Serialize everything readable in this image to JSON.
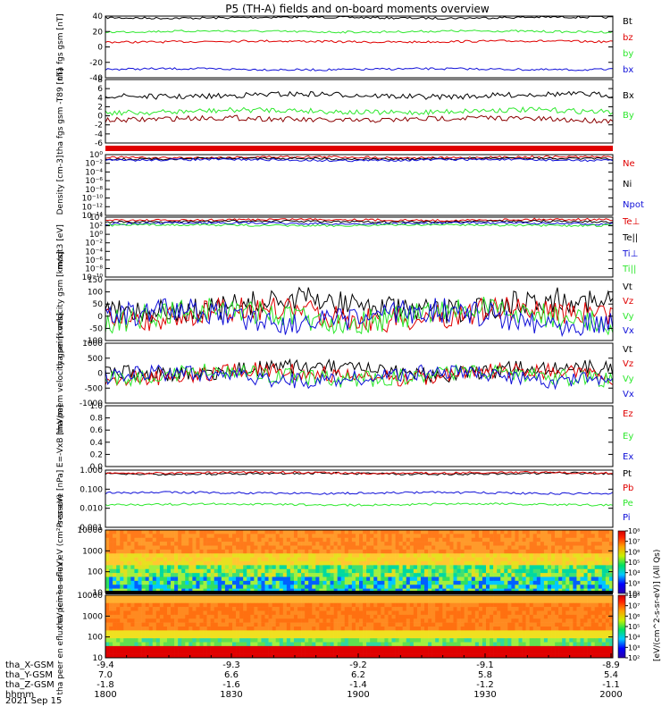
{
  "title": "P5 (TH-A) fields and on-board moments overview",
  "date_label": "2021 Sep 15",
  "colors": {
    "black": "#000000",
    "red": "#e00000",
    "green": "#2ee82e",
    "blue": "#1010d8",
    "dkred": "#8b0000"
  },
  "ephemeris": {
    "row_labels": [
      "tha_X-GSM",
      "tha_Y-GSM",
      "tha_Z-GSM",
      "hhmm"
    ],
    "columns": [
      [
        "-9.4",
        "7.0",
        "-1.8",
        "1800"
      ],
      [
        "-9.3",
        "6.6",
        "-1.6",
        "1830"
      ],
      [
        "-9.2",
        "6.2",
        "-1.4",
        "1900"
      ],
      [
        "-9.1",
        "5.8",
        "-1.2",
        "1930"
      ],
      [
        "-8.9",
        "5.4",
        "-1.1",
        "2000"
      ]
    ]
  },
  "colorbar": {
    "ticks": [
      "10²",
      "10³",
      "10⁴",
      "10⁵",
      "10⁶",
      "10⁷",
      "10⁸"
    ],
    "label": "[eV/(cm^2-s-sr-eV)] (All Qs)"
  },
  "chart_data": [
    {
      "type": "line",
      "ylabel": "tha fgs gsm [nT]",
      "ticks": [
        "40",
        "20",
        "0",
        "-20",
        "-40"
      ],
      "ylim": [
        -40,
        40
      ],
      "series": [
        {
          "name": "Bt",
          "color": "#000000",
          "level": 38
        },
        {
          "name": "bz",
          "color": "#e00000",
          "level": 7
        },
        {
          "name": "by",
          "color": "#2ee82e",
          "level": 20
        },
        {
          "name": "bx",
          "color": "#1010d8",
          "level": -29
        }
      ]
    },
    {
      "type": "line",
      "ylabel": "tha fgs gsm -T89 [nT]",
      "ticks": [
        "8",
        "6",
        "4",
        "2",
        "0",
        "-2",
        "-4",
        "-6"
      ],
      "ylim": [
        -8,
        8
      ],
      "series": [
        {
          "name": "Bx",
          "color": "#000000",
          "level": 4
        },
        {
          "name": "By",
          "color": "#2ee82e",
          "level": 0
        },
        {
          "name": "Bz",
          "color": "#8b0000",
          "level": -2
        }
      ]
    },
    {
      "type": "line",
      "ylabel": "Density [cm-3]",
      "ticks": [
        "10⁰",
        "10⁻²",
        "10⁻⁴",
        "10⁻⁶",
        "10⁻⁸",
        "10⁻¹⁰",
        "10⁻¹²",
        "10⁻¹⁴"
      ],
      "ylim": [
        -14,
        0
      ],
      "log": true,
      "series": [
        {
          "name": "Ne",
          "color": "#e00000"
        },
        {
          "name": "Ni",
          "color": "#000000"
        },
        {
          "name": "Npot",
          "color": "#1010d8"
        }
      ]
    },
    {
      "type": "line",
      "ylabel": "moqt3 [eV]",
      "ticks": [
        "10⁴",
        "10²",
        "10⁰",
        "10⁻²",
        "10⁻⁴",
        "10⁻⁶",
        "10⁻⁸",
        "10⁻¹⁰"
      ],
      "ylim": [
        -10,
        4
      ],
      "log": true,
      "series": [
        {
          "name": "Te⊥",
          "color": "#e00000"
        },
        {
          "name": "Te||",
          "color": "#000000"
        },
        {
          "name": "Ti⊥",
          "color": "#1010d8"
        },
        {
          "name": "Ti||",
          "color": "#2ee82e"
        }
      ]
    },
    {
      "type": "line",
      "ylabel": "tha peim velocity gsm [km/s]",
      "ticks": [
        "150",
        "100",
        "50",
        "0",
        "-50",
        "-100"
      ],
      "ylim": [
        -100,
        150
      ],
      "series": [
        {
          "name": "Vt",
          "color": "#000000"
        },
        {
          "name": "Vz",
          "color": "#e00000"
        },
        {
          "name": "Vy",
          "color": "#2ee82e"
        },
        {
          "name": "Vx",
          "color": "#1010d8"
        }
      ]
    },
    {
      "type": "line",
      "ylabel": "tha peem velocity gsm [km/s]",
      "ticks": [
        "1000",
        "500",
        "0",
        "-500",
        "-1000"
      ],
      "ylim": [
        -1000,
        1000
      ],
      "series": [
        {
          "name": "Vt",
          "color": "#000000"
        },
        {
          "name": "Vz",
          "color": "#e00000"
        },
        {
          "name": "Vy",
          "color": "#2ee82e"
        },
        {
          "name": "Vx",
          "color": "#1010d8"
        }
      ]
    },
    {
      "type": "line",
      "ylabel": "E=-VxB [mV/m]",
      "ticks": [
        "1.0",
        "0.8",
        "0.6",
        "0.4",
        "0.2",
        "0.0"
      ],
      "ylim": [
        0,
        1
      ],
      "series": [
        {
          "name": "Ez",
          "color": "#e00000"
        },
        {
          "name": "Ey",
          "color": "#2ee82e"
        },
        {
          "name": "Ex",
          "color": "#1010d8"
        }
      ]
    },
    {
      "type": "line",
      "ylabel": "Pressure [nPa]",
      "ticks": [
        "1.000",
        "0.100",
        "0.010",
        "0.001"
      ],
      "ylim": [
        0.001,
        1
      ],
      "log": true,
      "series": [
        {
          "name": "Pt",
          "color": "#000000"
        },
        {
          "name": "Pb",
          "color": "#e00000"
        },
        {
          "name": "Pe",
          "color": "#2ee82e"
        },
        {
          "name": "Pi",
          "color": "#1010d8"
        }
      ]
    },
    {
      "type": "heatmap",
      "ylabel": "tha peir en eflux eV (cm²-s-sr-eV)",
      "ticks": [
        "10000",
        "1000",
        "100",
        "10"
      ],
      "ylim": [
        10,
        10000
      ],
      "log": true
    },
    {
      "type": "heatmap",
      "ylabel": "tha peer en eflux eV (cm²-s-sr-eV)",
      "ticks": [
        "10000",
        "1000",
        "100",
        "10"
      ],
      "ylim": [
        10,
        10000
      ],
      "log": true
    }
  ]
}
